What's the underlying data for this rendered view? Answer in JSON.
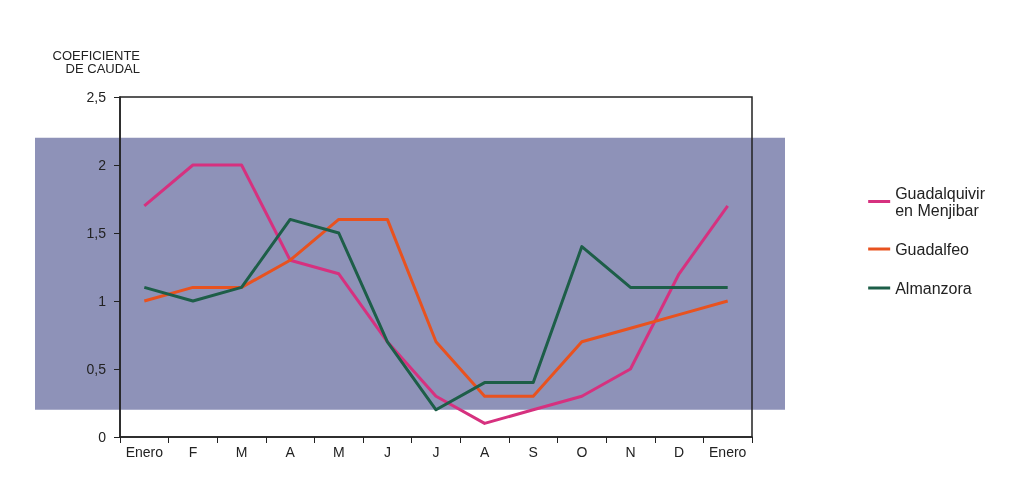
{
  "chart_data": {
    "type": "line",
    "ylabel": "COEFICIENTE\nDE CAUDAL",
    "categories": [
      "Enero",
      "F",
      "M",
      "A",
      "M",
      "J",
      "J",
      "A",
      "S",
      "O",
      "N",
      "D",
      "Enero"
    ],
    "series": [
      {
        "name": "Guadalquivir\nen Menjibar",
        "color": "#d6317f",
        "values": [
          1.7,
          2.0,
          2.0,
          1.3,
          1.2,
          0.7,
          0.3,
          0.1,
          0.2,
          0.3,
          0.5,
          1.2,
          1.7
        ]
      },
      {
        "name": "Guadalfeo",
        "color": "#e8521f",
        "values": [
          1.0,
          1.1,
          1.1,
          1.3,
          1.6,
          1.6,
          0.7,
          0.3,
          0.3,
          0.7,
          0.8,
          0.9,
          1.0
        ]
      },
      {
        "name": "Almanzora",
        "color": "#1d5e48",
        "values": [
          1.1,
          1.0,
          1.1,
          1.6,
          1.5,
          0.7,
          0.2,
          0.4,
          0.4,
          1.4,
          1.1,
          1.1,
          1.1
        ]
      }
    ],
    "ylim": [
      0,
      2.5
    ],
    "yticks": [
      0,
      {
        "value": 0.5,
        "label": "0,5"
      },
      1,
      {
        "value": 1.5,
        "label": "1,5"
      },
      2,
      {
        "value": 2.5,
        "label": "2,5"
      }
    ],
    "bands": [
      {
        "axis": "y",
        "from": 0.2,
        "to": 2.2,
        "color": "#8e92b8"
      }
    ],
    "legend": "right",
    "grid": false,
    "marker": "none",
    "line_style": "solid"
  }
}
